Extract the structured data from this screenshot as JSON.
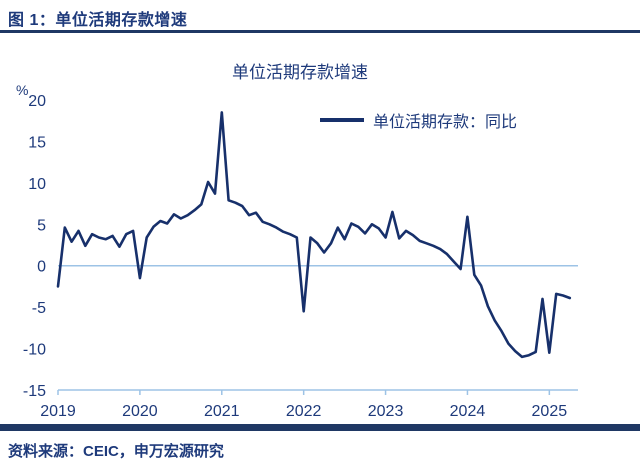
{
  "header": {
    "title": "图 1：单位活期存款增速"
  },
  "chart_data": {
    "type": "line",
    "title": "单位活期存款增速",
    "unit_label": "%",
    "legend_position": "top-right-inside",
    "grid": false,
    "x_ticks": [
      2019,
      2020,
      2021,
      2022,
      2023,
      2024,
      2025
    ],
    "xlim": [
      2019,
      2025.35
    ],
    "y_ticks": [
      20,
      15,
      10,
      5,
      0,
      -5,
      -10,
      -15
    ],
    "ylim": [
      -15,
      20
    ],
    "x_start": 2019.0,
    "x_step": "monthly",
    "axis_color": "#9dc3e6",
    "text_color": "#1e3a7b",
    "series": [
      {
        "name": "单位活期存款：同比",
        "color": "#17306b",
        "values": [
          -2.5,
          4.6,
          2.9,
          4.2,
          2.4,
          3.8,
          3.4,
          3.2,
          3.6,
          2.3,
          3.8,
          4.2,
          -1.5,
          3.4,
          4.7,
          5.4,
          5.1,
          6.2,
          5.7,
          6.1,
          6.7,
          7.4,
          10.1,
          8.7,
          18.5,
          7.9,
          7.6,
          7.2,
          6.1,
          6.4,
          5.3,
          5.0,
          4.6,
          4.1,
          3.8,
          3.4,
          -5.5,
          3.4,
          2.7,
          1.6,
          2.7,
          4.6,
          3.2,
          5.1,
          4.7,
          3.9,
          5.0,
          4.5,
          3.4,
          6.5,
          3.3,
          4.2,
          3.7,
          3.0,
          2.7,
          2.4,
          2.0,
          1.4,
          0.5,
          -0.4,
          5.9,
          -1.1,
          -2.4,
          -4.9,
          -6.6,
          -7.9,
          -9.4,
          -10.3,
          -11.0,
          -10.8,
          -10.4,
          -4.0,
          -10.5,
          -3.4,
          -3.6,
          -3.9
        ]
      }
    ]
  },
  "footer": {
    "source": "资料来源：CEIC，申万宏源研究"
  },
  "colors": {
    "navy": "#1f3864",
    "line_navy": "#17306b",
    "text_navy": "#1e3a7b",
    "axis_blue": "#9dc3e6",
    "background": "#ffffff"
  }
}
